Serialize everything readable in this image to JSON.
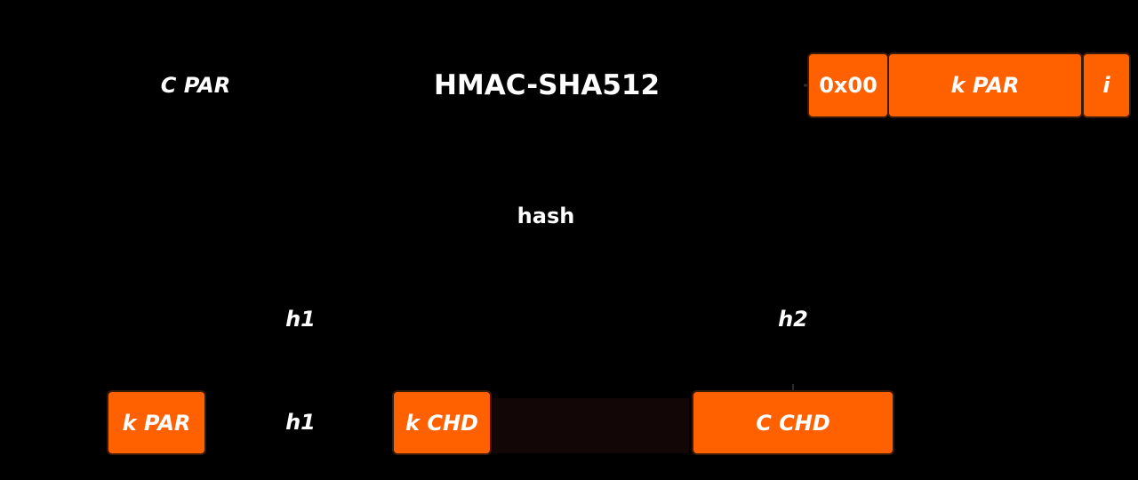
{
  "diagram": {
    "top": {
      "chain_code_parent": "C PAR",
      "function": "HMAC-SHA512",
      "input_fields": [
        {
          "id": "prefix",
          "label": "0x00"
        },
        {
          "id": "key",
          "label": "k PAR"
        },
        {
          "id": "index",
          "label": "i"
        }
      ]
    },
    "hash_label": "hash",
    "split": {
      "left": "h1",
      "right": "h2"
    },
    "bottom": {
      "parent_key": "k PAR",
      "h1_label": "h1",
      "child_key": "k CHD",
      "child_chain_code": "C CHD"
    },
    "colors": {
      "accent": "#ff6000",
      "background": "#000000",
      "text": "#ffffff"
    }
  }
}
